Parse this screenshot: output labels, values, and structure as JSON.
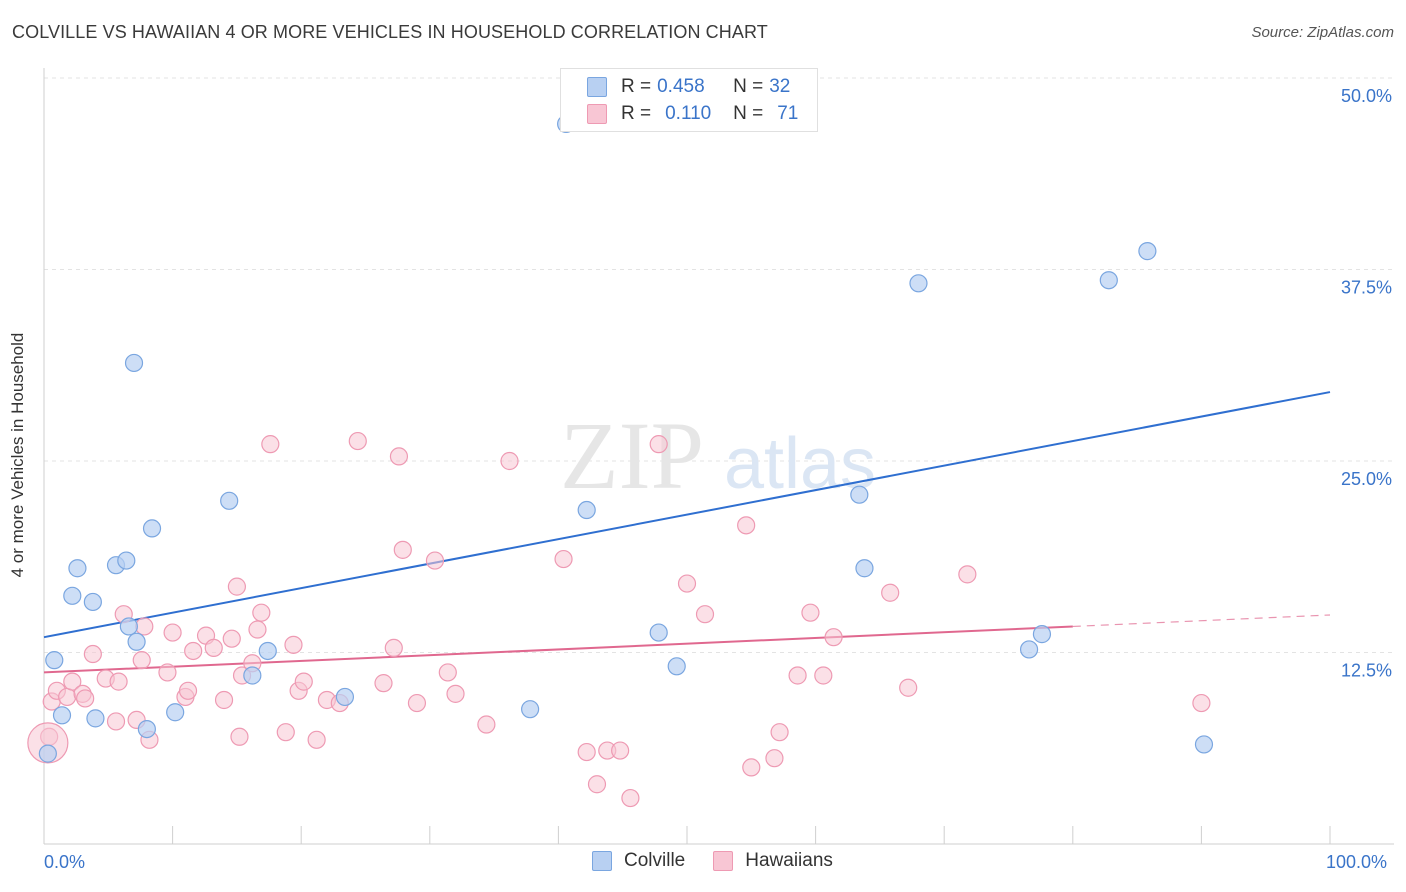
{
  "title": "COLVILLE VS HAWAIIAN 4 OR MORE VEHICLES IN HOUSEHOLD CORRELATION CHART",
  "source": "Source: ZipAtlas.com",
  "watermark": {
    "zip": "ZIP",
    "atlas": "atlas"
  },
  "legend": {
    "colville": {
      "r_label": "R = ",
      "r_value": "0.458",
      "n_label": "N = ",
      "n_value": "32"
    },
    "hawaiians": {
      "r_label": "R = ",
      "r_value": "0.110",
      "n_label": "N = ",
      "n_value": "71"
    }
  },
  "colors": {
    "colville_fill": "#b8d0f2",
    "colville_stroke": "#7aa6e0",
    "colville_line": "#2f6fd0",
    "hawaiians_fill": "#f8c6d4",
    "hawaiians_stroke": "#ee9ab3",
    "hawaiians_line": "#e0688f",
    "axis_text": "#3a74c9"
  },
  "chart_data": {
    "type": "scatter",
    "title": "COLVILLE VS HAWAIIAN 4 OR MORE VEHICLES IN HOUSEHOLD CORRELATION CHART",
    "xlabel": "",
    "ylabel": "4 or more Vehicles in Household",
    "xlim": [
      0,
      100
    ],
    "ylim": [
      0,
      50
    ],
    "x_tick_labels": [
      "0.0%",
      "100.0%"
    ],
    "y_ticks": [
      12.5,
      25.0,
      37.5,
      50.0
    ],
    "y_tick_labels": [
      "12.5%",
      "25.0%",
      "37.5%",
      "50.0%"
    ],
    "grid": true,
    "legend_position": "top-center",
    "series": [
      {
        "name": "Colville",
        "points": [
          [
            0.3,
            5.9
          ],
          [
            0.8,
            12.0
          ],
          [
            1.4,
            8.4
          ],
          [
            2.2,
            16.2
          ],
          [
            2.6,
            18.0
          ],
          [
            3.8,
            15.8
          ],
          [
            4.0,
            8.2
          ],
          [
            5.6,
            18.2
          ],
          [
            6.4,
            18.5
          ],
          [
            6.6,
            14.2
          ],
          [
            7.0,
            31.4
          ],
          [
            7.2,
            13.2
          ],
          [
            8.0,
            7.5
          ],
          [
            8.4,
            20.6
          ],
          [
            10.2,
            8.6
          ],
          [
            14.4,
            22.4
          ],
          [
            16.2,
            11.0
          ],
          [
            17.4,
            12.6
          ],
          [
            23.4,
            9.6
          ],
          [
            37.8,
            8.8
          ],
          [
            40.6,
            47.0
          ],
          [
            42.2,
            21.8
          ],
          [
            47.8,
            13.8
          ],
          [
            49.2,
            11.6
          ],
          [
            63.4,
            22.8
          ],
          [
            63.8,
            18.0
          ],
          [
            68.0,
            36.6
          ],
          [
            76.6,
            12.7
          ],
          [
            77.6,
            13.7
          ],
          [
            82.8,
            36.8
          ],
          [
            85.8,
            38.7
          ],
          [
            90.2,
            6.5
          ]
        ]
      },
      {
        "name": "Hawaiians",
        "points": [
          [
            0.4,
            7.0
          ],
          [
            0.6,
            9.3
          ],
          [
            1.0,
            10.0
          ],
          [
            1.8,
            9.6
          ],
          [
            2.2,
            10.6
          ],
          [
            3.0,
            9.8
          ],
          [
            3.2,
            9.5
          ],
          [
            3.8,
            12.4
          ],
          [
            4.8,
            10.8
          ],
          [
            5.6,
            8.0
          ],
          [
            5.8,
            10.6
          ],
          [
            6.2,
            15.0
          ],
          [
            7.2,
            8.1
          ],
          [
            7.6,
            12.0
          ],
          [
            7.8,
            14.2
          ],
          [
            8.2,
            6.8
          ],
          [
            9.6,
            11.2
          ],
          [
            10.0,
            13.8
          ],
          [
            11.0,
            9.6
          ],
          [
            11.2,
            10.0
          ],
          [
            11.6,
            12.6
          ],
          [
            12.6,
            13.6
          ],
          [
            13.2,
            12.8
          ],
          [
            14.0,
            9.4
          ],
          [
            14.6,
            13.4
          ],
          [
            15.0,
            16.8
          ],
          [
            15.2,
            7.0
          ],
          [
            15.4,
            11.0
          ],
          [
            16.2,
            11.8
          ],
          [
            16.6,
            14.0
          ],
          [
            16.9,
            15.1
          ],
          [
            17.6,
            26.1
          ],
          [
            18.8,
            7.3
          ],
          [
            19.4,
            13.0
          ],
          [
            19.8,
            10.0
          ],
          [
            20.2,
            10.6
          ],
          [
            21.2,
            6.8
          ],
          [
            22.0,
            9.4
          ],
          [
            23.0,
            9.2
          ],
          [
            24.4,
            26.3
          ],
          [
            26.4,
            10.5
          ],
          [
            27.2,
            12.8
          ],
          [
            27.6,
            25.3
          ],
          [
            27.9,
            19.2
          ],
          [
            29.0,
            9.2
          ],
          [
            30.4,
            18.5
          ],
          [
            31.4,
            11.2
          ],
          [
            32.0,
            9.8
          ],
          [
            34.4,
            7.8
          ],
          [
            36.2,
            25.0
          ],
          [
            40.4,
            18.6
          ],
          [
            42.2,
            6.0
          ],
          [
            43.0,
            3.9
          ],
          [
            43.8,
            6.1
          ],
          [
            44.8,
            6.1
          ],
          [
            45.6,
            3.0
          ],
          [
            47.8,
            26.1
          ],
          [
            50.0,
            17.0
          ],
          [
            51.4,
            15.0
          ],
          [
            54.6,
            20.8
          ],
          [
            55.0,
            5.0
          ],
          [
            56.8,
            5.6
          ],
          [
            57.2,
            7.3
          ],
          [
            58.6,
            11.0
          ],
          [
            59.6,
            15.1
          ],
          [
            60.6,
            11.0
          ],
          [
            61.4,
            13.5
          ],
          [
            65.8,
            16.4
          ],
          [
            67.2,
            10.2
          ],
          [
            71.8,
            17.6
          ],
          [
            90.0,
            9.2
          ]
        ]
      }
    ],
    "trend_lines": [
      {
        "name": "Colville",
        "x": [
          0,
          100
        ],
        "y": [
          13.5,
          29.5
        ]
      },
      {
        "name": "Hawaiians",
        "x": [
          0,
          80
        ],
        "y": [
          11.2,
          14.2
        ],
        "dashed_extension_to": 100
      }
    ]
  },
  "bottom_legend": [
    {
      "label": "Colville"
    },
    {
      "label": "Hawaiians"
    }
  ]
}
